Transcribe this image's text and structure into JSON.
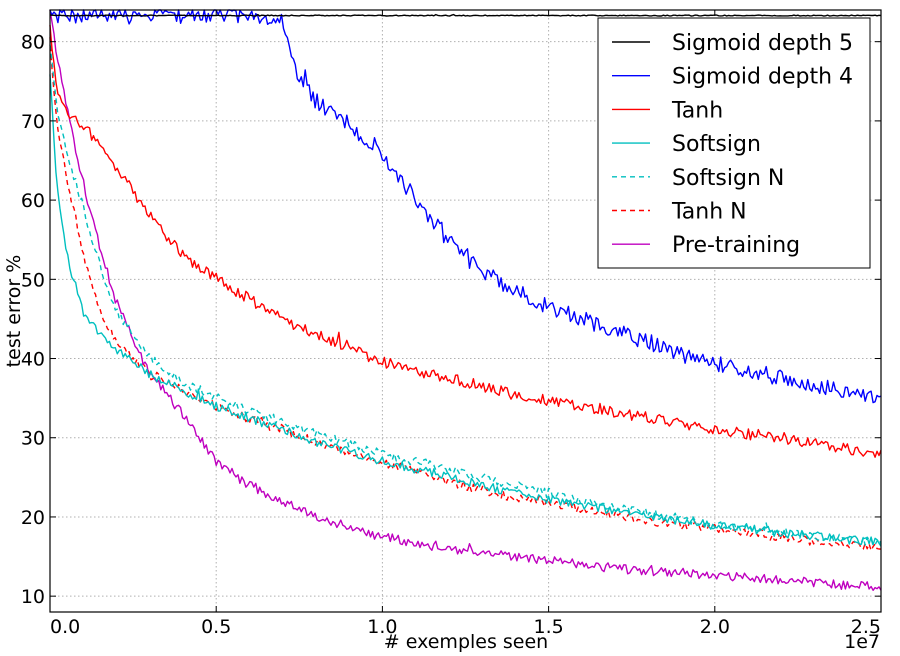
{
  "chart_data": {
    "type": "line",
    "xlabel": "# exemples seen",
    "ylabel": "test error %",
    "x_offset_label": "1e7",
    "xlim": [
      0,
      2.5
    ],
    "ylim": [
      8,
      84
    ],
    "xticks": [
      0.0,
      0.5,
      1.0,
      1.5,
      2.0,
      2.5
    ],
    "xtick_labels": [
      "0.0",
      "0.5",
      "1.0",
      "1.5",
      "2.0",
      "2.5"
    ],
    "yticks": [
      10,
      20,
      30,
      40,
      50,
      60,
      70,
      80
    ],
    "ytick_labels": [
      "10",
      "20",
      "30",
      "40",
      "50",
      "60",
      "70",
      "80"
    ],
    "grid": true,
    "legend_position": "top-right",
    "series": [
      {
        "name": "Sigmoid depth 5",
        "color": "#000000",
        "style": "solid",
        "noise": 0.05,
        "x": [
          0,
          0.05,
          0.5,
          1.0,
          1.5,
          2.0,
          2.5
        ],
        "y": [
          83.3,
          83.3,
          83.3,
          83.3,
          83.3,
          83.3,
          83.3
        ]
      },
      {
        "name": "Sigmoid depth 4",
        "color": "#0000ff",
        "style": "solid",
        "noise": 0.9,
        "x": [
          0,
          0.1,
          0.3,
          0.5,
          0.62,
          0.68,
          0.7,
          0.72,
          0.75,
          0.8,
          0.9,
          1.0,
          1.1,
          1.2,
          1.3,
          1.4,
          1.5,
          1.6,
          1.7,
          1.8,
          1.9,
          2.0,
          2.1,
          2.2,
          2.3,
          2.4,
          2.5
        ],
        "y": [
          83.4,
          83.4,
          83.4,
          83.4,
          83.4,
          83.0,
          82.3,
          80.0,
          75.0,
          72.5,
          69.5,
          66.0,
          60.0,
          55.0,
          51.0,
          48.5,
          46.5,
          45.0,
          43.5,
          42.0,
          40.5,
          39.5,
          38.5,
          37.5,
          36.5,
          35.8,
          35.0
        ]
      },
      {
        "name": "Tanh",
        "color": "#ff0000",
        "style": "solid",
        "noise": 0.6,
        "x": [
          0,
          0.02,
          0.05,
          0.1,
          0.15,
          0.2,
          0.25,
          0.3,
          0.4,
          0.5,
          0.6,
          0.7,
          0.8,
          0.9,
          1.0,
          1.2,
          1.4,
          1.6,
          1.8,
          2.0,
          2.2,
          2.4,
          2.5
        ],
        "y": [
          82,
          74,
          71,
          69.5,
          67,
          64,
          61,
          58,
          53,
          50,
          47.5,
          45,
          43,
          41.5,
          39.5,
          37.5,
          35.5,
          34,
          32.5,
          31,
          30,
          28.5,
          27.8
        ]
      },
      {
        "name": "Softsign",
        "color": "#00bfbf",
        "style": "solid",
        "noise": 0.5,
        "x": [
          0,
          0.02,
          0.05,
          0.1,
          0.15,
          0.2,
          0.3,
          0.4,
          0.5,
          0.6,
          0.8,
          1.0,
          1.2,
          1.4,
          1.6,
          1.8,
          2.0,
          2.2,
          2.4,
          2.5
        ],
        "y": [
          76,
          62,
          53,
          46,
          43,
          41,
          38,
          36,
          34,
          32.5,
          29.5,
          27,
          25,
          23,
          21.5,
          20,
          19,
          18,
          17.2,
          16.8
        ]
      },
      {
        "name": "Softsign N",
        "color": "#00bfbf",
        "style": "dashed",
        "noise": 0.5,
        "x": [
          0,
          0.02,
          0.05,
          0.1,
          0.15,
          0.2,
          0.3,
          0.4,
          0.5,
          0.6,
          0.8,
          1.0,
          1.2,
          1.4,
          1.6,
          1.8,
          2.0,
          2.2,
          2.4,
          2.5
        ],
        "y": [
          80,
          72,
          66,
          59,
          52,
          46,
          40,
          37,
          35,
          33.5,
          30.5,
          28,
          26,
          24,
          22,
          20.5,
          19,
          18,
          17.2,
          16.8
        ]
      },
      {
        "name": "Tanh N",
        "color": "#ff0000",
        "style": "dashed",
        "noise": 0.5,
        "x": [
          0,
          0.02,
          0.05,
          0.1,
          0.15,
          0.2,
          0.3,
          0.4,
          0.5,
          0.6,
          0.8,
          1.0,
          1.2,
          1.4,
          1.6,
          1.8,
          2.0,
          2.2,
          2.4,
          2.5
        ],
        "y": [
          80,
          70,
          63,
          53,
          46,
          42,
          38,
          36,
          34,
          32.5,
          29.5,
          27,
          24.5,
          22.5,
          21,
          19.5,
          18.5,
          17.5,
          16.5,
          16
        ]
      },
      {
        "name": "Pre-training",
        "color": "#bf00bf",
        "style": "solid",
        "noise": 0.5,
        "x": [
          0,
          0.02,
          0.05,
          0.1,
          0.15,
          0.2,
          0.3,
          0.4,
          0.5,
          0.6,
          0.8,
          1.0,
          1.2,
          1.4,
          1.6,
          1.8,
          2.0,
          2.2,
          2.4,
          2.5
        ],
        "y": [
          84,
          78,
          72,
          62,
          54,
          47,
          38,
          33,
          27,
          24,
          20,
          17.5,
          16,
          15,
          14,
          13.2,
          12.6,
          12,
          11.4,
          11.1
        ]
      }
    ]
  }
}
